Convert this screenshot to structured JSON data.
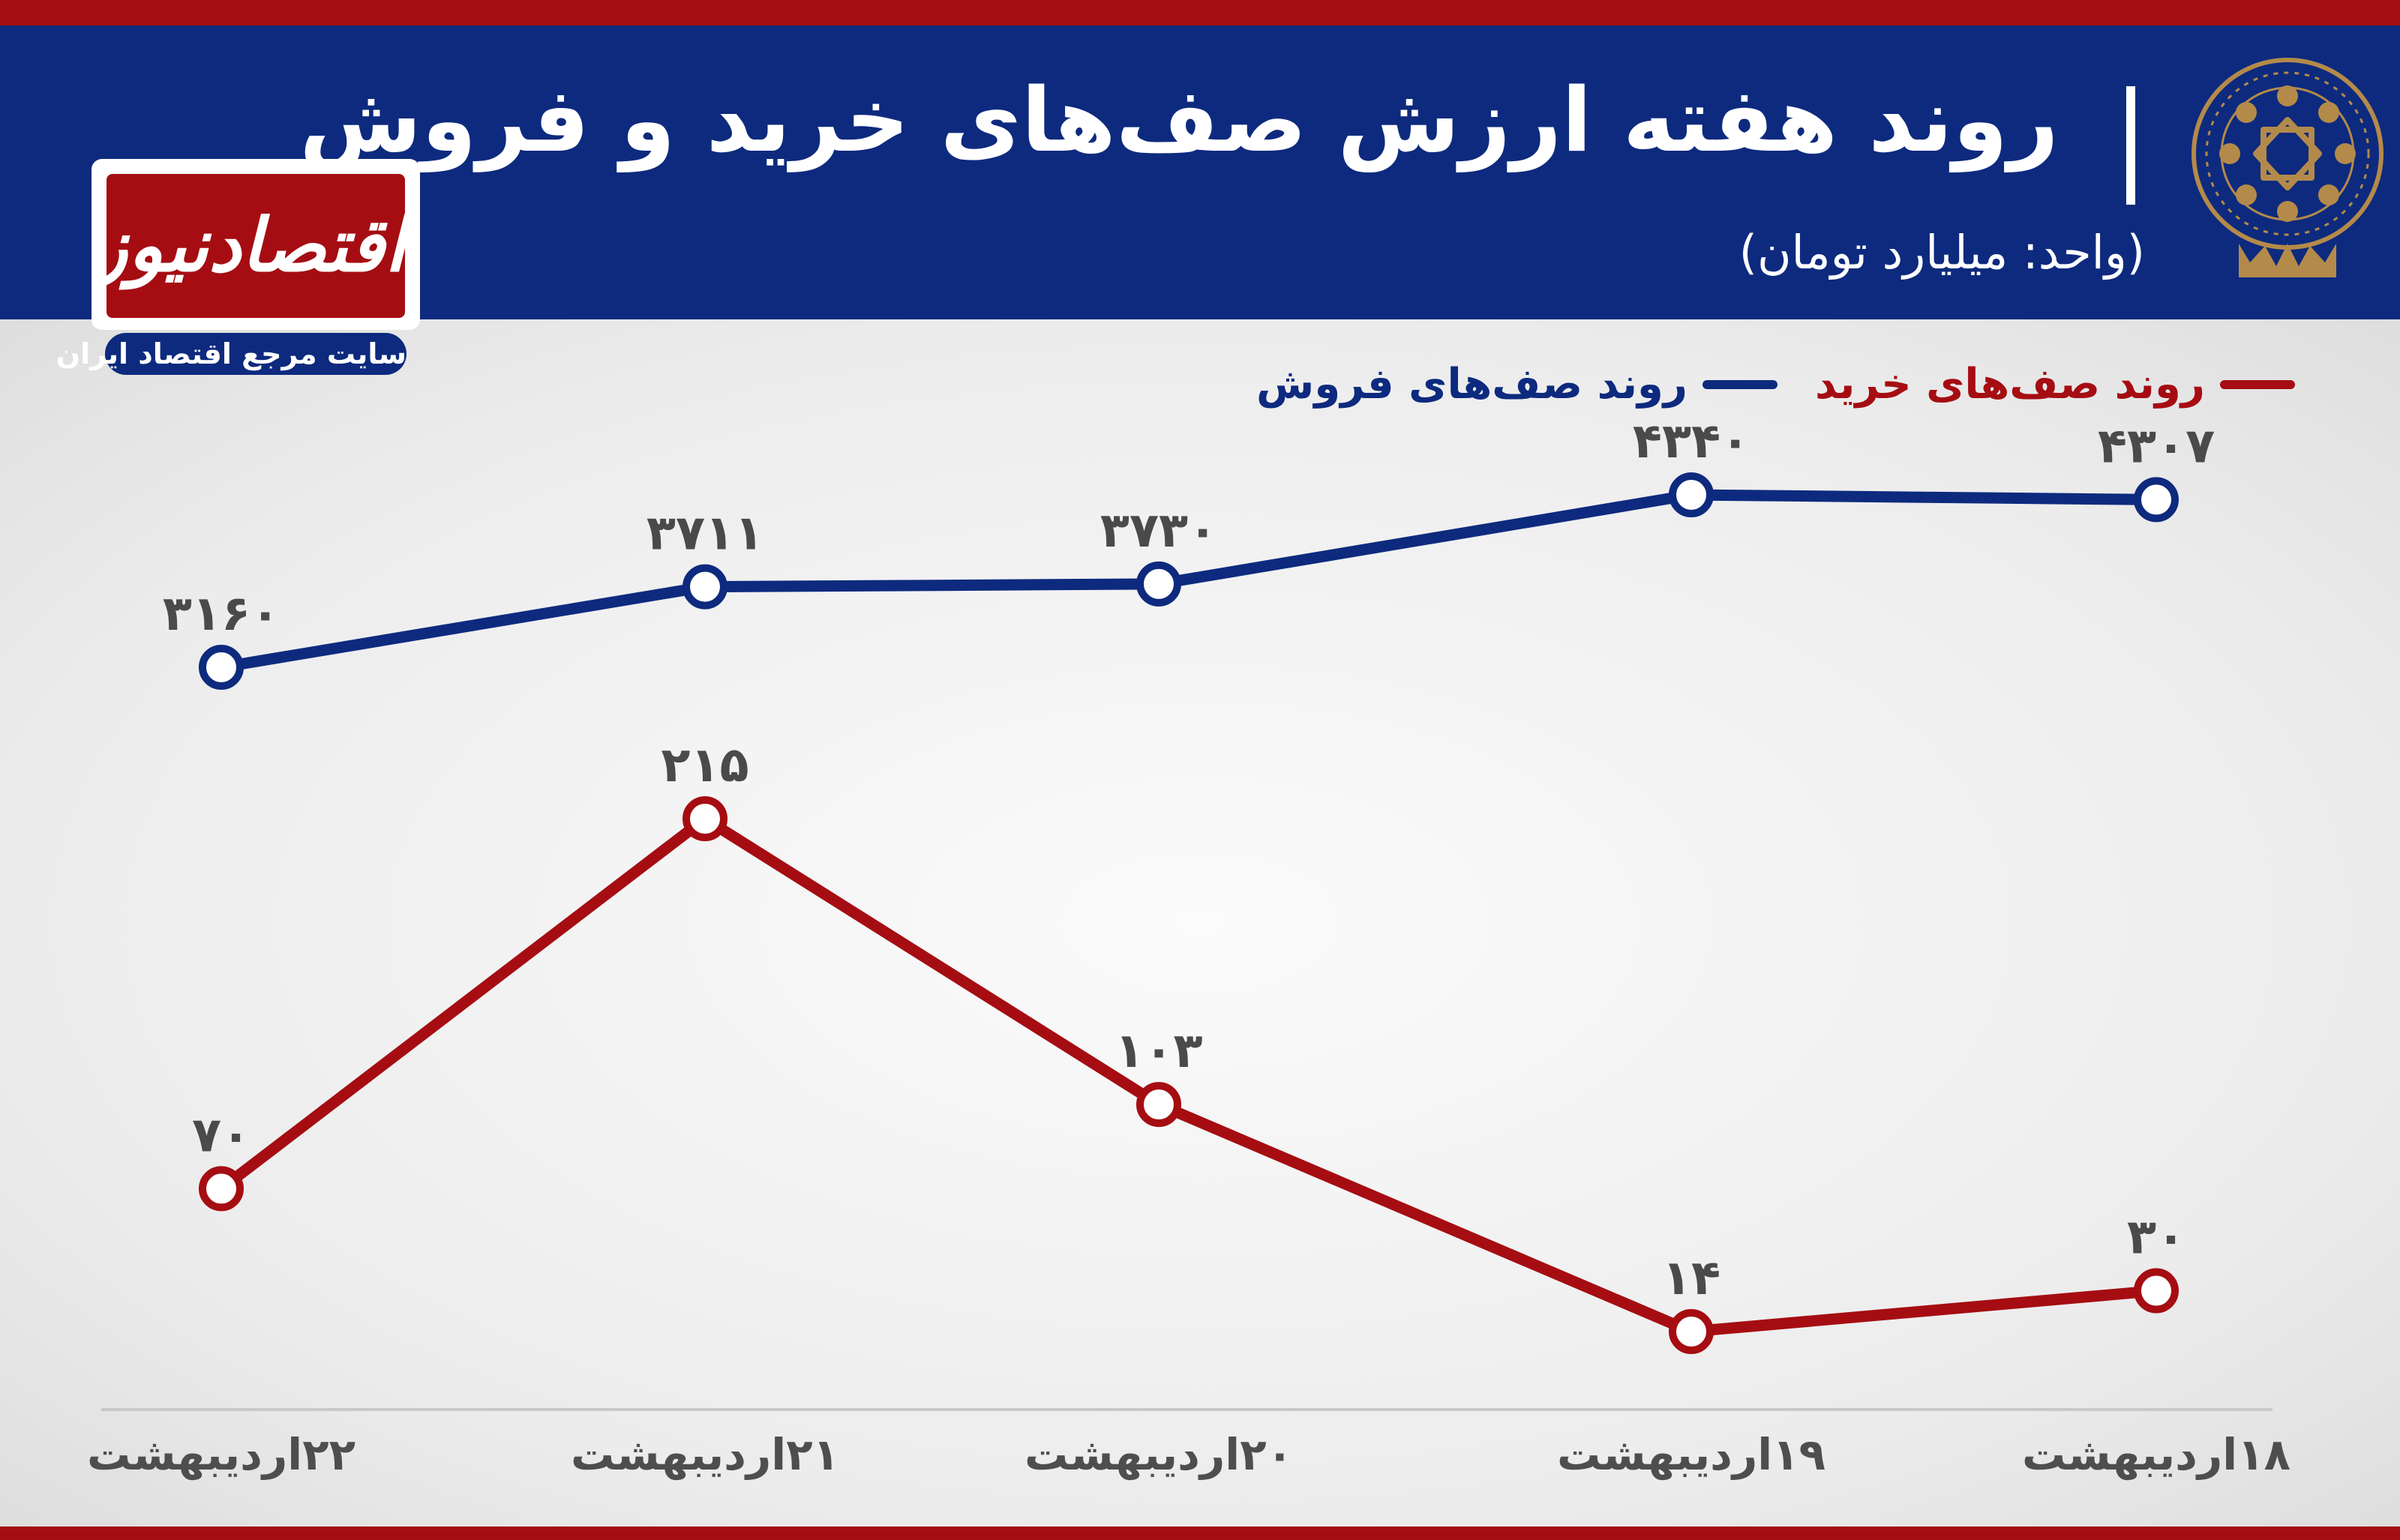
{
  "header": {
    "title": "روند هفته ارزش صف‌های خرید و فروش",
    "unit": "(واحد: میلیارد تومان)"
  },
  "logo": {
    "name": "اقتصادنیوز",
    "tagline": "سایت مرجع اقتصاد ایران"
  },
  "colors": {
    "header_bg": "#0d2a7e",
    "accent_red": "#a50d12",
    "sell_series": "#0d2a7e",
    "buy_series": "#a50d12"
  },
  "chart_data": {
    "type": "line",
    "title": "روند هفته ارزش صف‌های خرید و فروش",
    "subtitle": "(واحد: میلیارد تومان)",
    "categories": [
      "۱۸اردیبهشت",
      "۱۹اردیبهشت",
      "۲۰اردیبهشت",
      "۲۱اردیبهشت",
      "۲۲اردیبهشت"
    ],
    "series": [
      {
        "name": "روند صف‌های فروش",
        "values": [
          4307,
          4340,
          3730,
          3711,
          3160
        ],
        "labels": [
          "۴۳۰۷",
          "۴۳۴۰",
          "۳۷۳۰",
          "۳۷۱۱",
          "۳۱۶۰"
        ],
        "color": "#0d2a7e"
      },
      {
        "name": "روند صف‌های خرید",
        "values": [
          30,
          14,
          103,
          215,
          70
        ],
        "labels": [
          "۳۰",
          "۱۴",
          "۱۰۳",
          "۲۱۵",
          "۷۰"
        ],
        "color": "#a50d12"
      }
    ],
    "legend": "top-right",
    "grid": false
  }
}
